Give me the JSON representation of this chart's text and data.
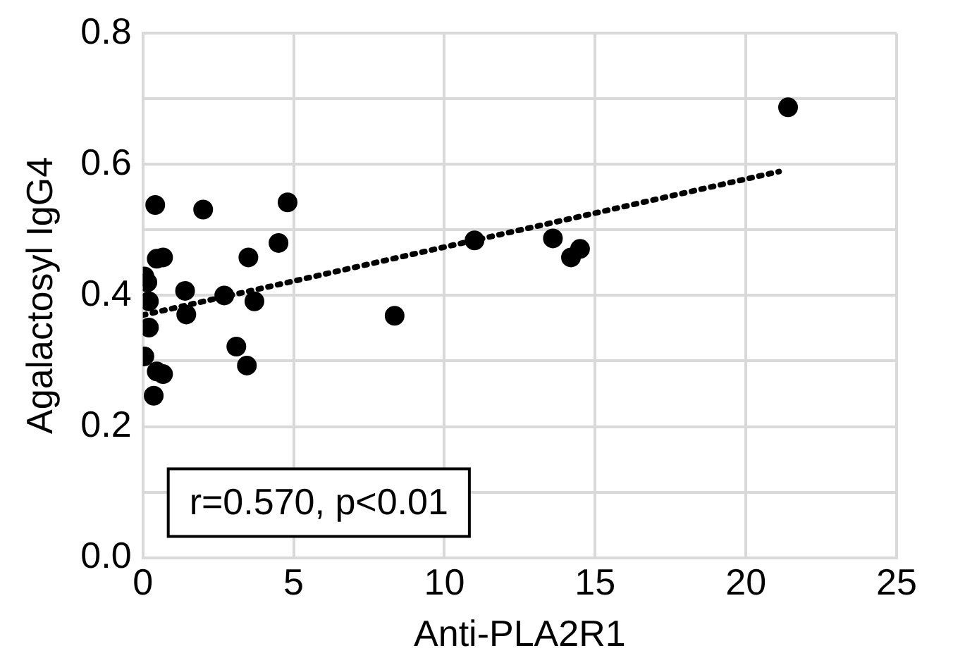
{
  "chart_data": {
    "type": "scatter",
    "xlabel": "Anti-PLA2R1",
    "ylabel": "Agalactosyl IgG4",
    "xlim": [
      0,
      25
    ],
    "xticks": [
      0,
      5,
      10,
      15,
      20,
      25
    ],
    "ylim": [
      0,
      0.8
    ],
    "yticks": [
      {
        "value": 0,
        "label": "0.0"
      },
      {
        "value": 0.1,
        "label": null
      },
      {
        "value": 0.2,
        "label": "0.2"
      },
      {
        "value": 0.3,
        "label": null
      },
      {
        "value": 0.4,
        "label": "0.4"
      },
      {
        "value": 0.5,
        "label": null
      },
      {
        "value": 0.6,
        "label": "0.6"
      },
      {
        "value": 0.7,
        "label": null
      },
      {
        "value": 0.8,
        "label": "0.8"
      }
    ],
    "grid": true,
    "marker": "circle",
    "legend": false,
    "annotations": [
      "r=0.570, p<0.01"
    ],
    "series": [
      {
        "color": "#000000",
        "x": [
          0.41,
          2.0,
          4.8,
          0.67,
          0.46,
          3.5,
          4.5,
          0.05,
          0.15,
          1.4,
          2.7,
          3.7,
          0.2,
          1.44,
          0.2,
          3.1,
          0.05,
          3.45,
          0.46,
          0.67,
          0.36,
          8.35,
          11.0,
          13.6,
          14.5,
          14.2,
          21.4
        ],
        "values": [
          0.538,
          0.531,
          0.542,
          0.458,
          0.456,
          0.458,
          0.48,
          0.429,
          0.42,
          0.407,
          0.4,
          0.391,
          0.391,
          0.371,
          0.351,
          0.322,
          0.307,
          0.293,
          0.284,
          0.28,
          0.247,
          0.369,
          0.484,
          0.487,
          0.471,
          0.458,
          0.687
        ]
      },
      {
        "type": "line",
        "color": "#000000",
        "line_style": "dotted",
        "marker": "none",
        "x": [
          0,
          21.1
        ],
        "values": [
          0.37,
          0.589
        ]
      }
    ]
  }
}
